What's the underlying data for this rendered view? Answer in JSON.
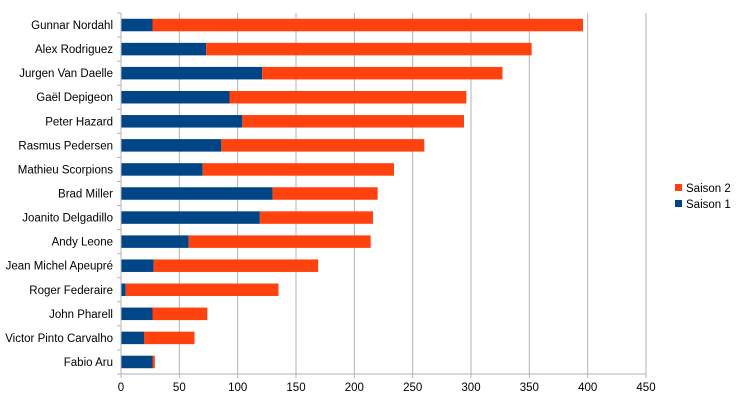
{
  "chart_data": {
    "type": "bar",
    "orientation": "horizontal",
    "stacked": true,
    "categories": [
      "Gunnar Nordahl",
      "Alex Rodriguez",
      "Jurgen Van Daelle",
      "Gaël Depigeon",
      "Peter Hazard",
      "Rasmus Pedersen",
      "Mathieu Scorpions",
      "Brad Miller",
      "Joanito Delgadillo",
      "Andy Leone",
      "Jean Michel Apeupré",
      "Roger Federaire",
      "John Pharell",
      "Victor Pinto Carvalho",
      "Fabio Aru"
    ],
    "series": [
      {
        "name": "Saison 1",
        "color": "#004586",
        "values": [
          27,
          73,
          121,
          93,
          104,
          86,
          70,
          130,
          119,
          58,
          28,
          4,
          27,
          20,
          27
        ]
      },
      {
        "name": "Saison 2",
        "color": "#ff420e",
        "values": [
          369,
          279,
          206,
          203,
          190,
          174,
          164,
          90,
          97,
          156,
          141,
          131,
          47,
          43,
          2
        ]
      }
    ],
    "xlim": [
      0,
      450
    ],
    "xticks": [
      0,
      50,
      100,
      150,
      200,
      250,
      300,
      350,
      400,
      450
    ],
    "grid": true,
    "legend_position": "right",
    "legend_order": [
      "Saison 2",
      "Saison 1"
    ],
    "title": "",
    "xlabel": "",
    "ylabel": ""
  }
}
